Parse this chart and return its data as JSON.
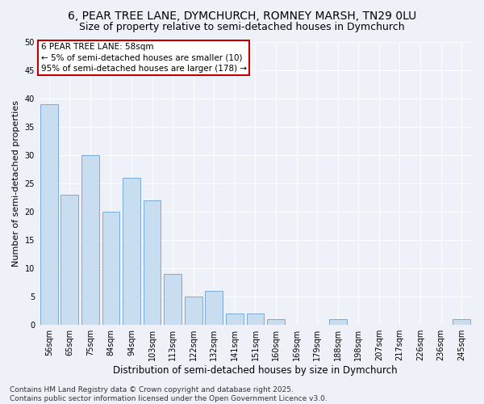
{
  "title": "6, PEAR TREE LANE, DYMCHURCH, ROMNEY MARSH, TN29 0LU",
  "subtitle": "Size of property relative to semi-detached houses in Dymchurch",
  "xlabel": "Distribution of semi-detached houses by size in Dymchurch",
  "ylabel": "Number of semi-detached properties",
  "categories": [
    "56sqm",
    "65sqm",
    "75sqm",
    "84sqm",
    "94sqm",
    "103sqm",
    "113sqm",
    "122sqm",
    "132sqm",
    "141sqm",
    "151sqm",
    "160sqm",
    "169sqm",
    "179sqm",
    "188sqm",
    "198sqm",
    "207sqm",
    "217sqm",
    "226sqm",
    "236sqm",
    "245sqm"
  ],
  "values": [
    39,
    23,
    30,
    20,
    26,
    22,
    9,
    5,
    6,
    2,
    2,
    1,
    0,
    0,
    1,
    0,
    0,
    0,
    0,
    0,
    1
  ],
  "bar_color": "#c9ddf0",
  "bar_edge_color": "#7aabdb",
  "highlight_bar_index": 0,
  "highlight_edge_color": "#c00000",
  "annotation_text": "6 PEAR TREE LANE: 58sqm\n← 5% of semi-detached houses are smaller (10)\n95% of semi-detached houses are larger (178) →",
  "annotation_box_color": "#ffffff",
  "annotation_box_edge_color": "#c00000",
  "ylim": [
    0,
    50
  ],
  "yticks": [
    0,
    5,
    10,
    15,
    20,
    25,
    30,
    35,
    40,
    45,
    50
  ],
  "bg_color": "#eef2f8",
  "grid_color": "#ffffff",
  "footnote": "Contains HM Land Registry data © Crown copyright and database right 2025.\nContains public sector information licensed under the Open Government Licence v3.0.",
  "title_fontsize": 10,
  "subtitle_fontsize": 9,
  "xlabel_fontsize": 8.5,
  "ylabel_fontsize": 8,
  "tick_fontsize": 7,
  "annotation_fontsize": 7.5,
  "footnote_fontsize": 6.5
}
